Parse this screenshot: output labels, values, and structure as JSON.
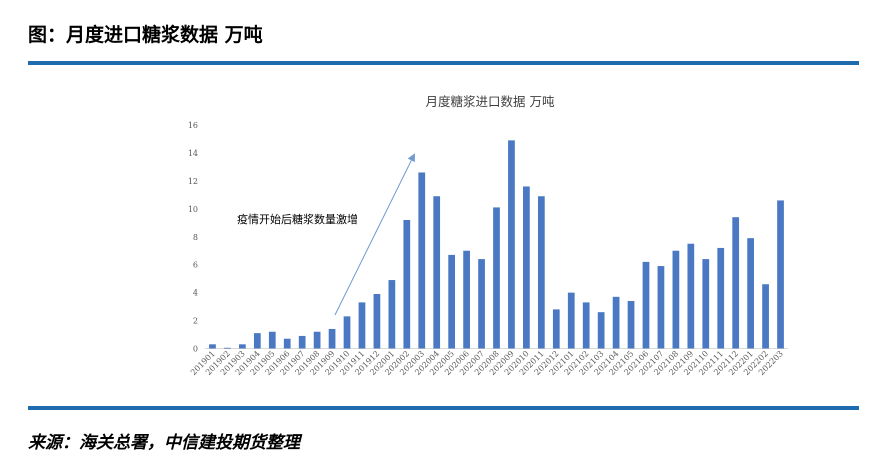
{
  "header": {
    "title": "图：月度进口糖浆数据  万吨"
  },
  "footer": {
    "source": "来源：海关总署，中信建投期货整理"
  },
  "colors": {
    "accent": "#1f6bb0",
    "bar": "#4a78c2",
    "arrow": "#6f9bd1"
  },
  "chart_data": {
    "type": "bar",
    "title": "月度糖浆进口数据 万吨",
    "xlabel": "",
    "ylabel": "",
    "ylim": [
      0,
      16
    ],
    "yticks": [
      0,
      2,
      4,
      6,
      8,
      10,
      12,
      14,
      16
    ],
    "grid": false,
    "legend": "none",
    "categories": [
      "201901",
      "201902",
      "201903",
      "201904",
      "201905",
      "201906",
      "201907",
      "201908",
      "201909",
      "201910",
      "201911",
      "201912",
      "202001",
      "202002",
      "202003",
      "202004",
      "202005",
      "202006",
      "202007",
      "202008",
      "202009",
      "202010",
      "202011",
      "202012",
      "202101",
      "202102",
      "202103",
      "202104",
      "202105",
      "202106",
      "202107",
      "202108",
      "202109",
      "202110",
      "202111",
      "202112",
      "202201",
      "202202",
      "202203"
    ],
    "values": [
      0.3,
      0.05,
      0.3,
      1.1,
      1.2,
      0.7,
      0.9,
      1.2,
      1.4,
      2.3,
      3.3,
      3.9,
      4.9,
      9.2,
      12.6,
      10.9,
      6.7,
      7.0,
      6.4,
      10.1,
      14.9,
      11.6,
      10.9,
      2.8,
      4.0,
      3.3,
      2.6,
      3.7,
      3.4,
      6.2,
      5.9,
      7.0,
      7.5,
      6.4,
      7.2,
      9.4,
      7.9,
      4.6,
      10.6
    ],
    "annotation": {
      "text": "疫情开始后糖浆数量激增"
    }
  }
}
